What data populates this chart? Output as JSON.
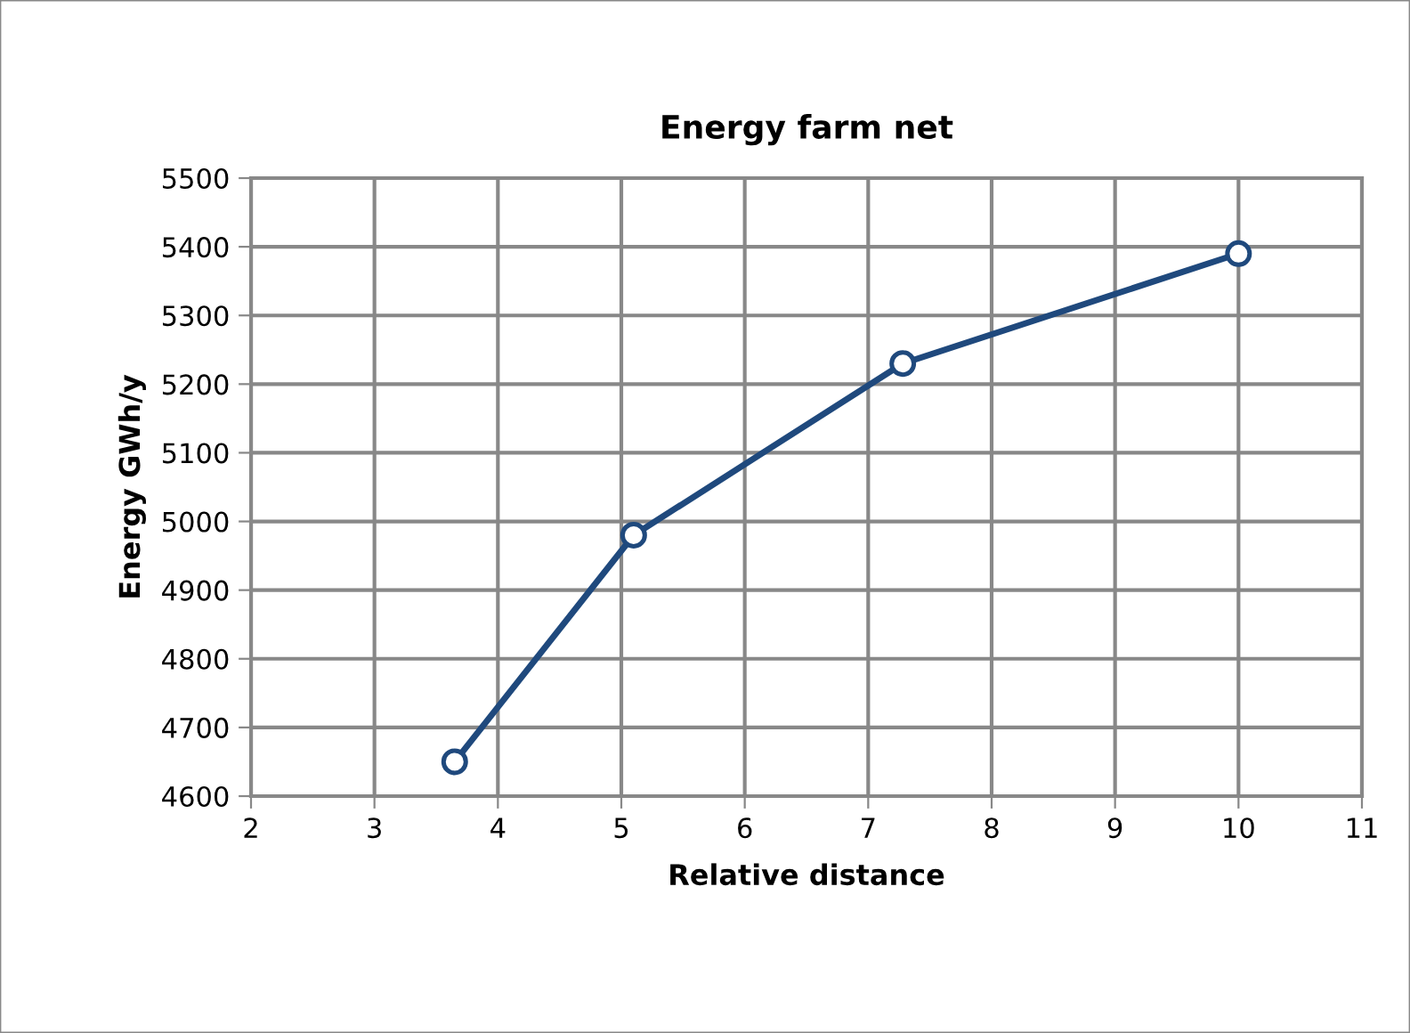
{
  "chart_data": {
    "type": "line",
    "title": "Energy farm net",
    "xlabel": "Relative distance",
    "ylabel": "Energy GWh/y",
    "x": [
      3.65,
      5.1,
      7.28,
      10
    ],
    "series": [
      {
        "color": "#1f497d",
        "values": [
          4650,
          4980,
          5230,
          5390
        ]
      }
    ],
    "xlim": [
      2,
      11
    ],
    "xticks": [
      2,
      3,
      4,
      5,
      6,
      7,
      8,
      9,
      10,
      11
    ],
    "ylim": [
      4600,
      5500
    ],
    "yticks": [
      4600,
      4700,
      4800,
      4900,
      5000,
      5100,
      5200,
      5300,
      5400,
      5500
    ],
    "grid": true,
    "marker": "circle",
    "line_style": "solid",
    "legend": false
  }
}
